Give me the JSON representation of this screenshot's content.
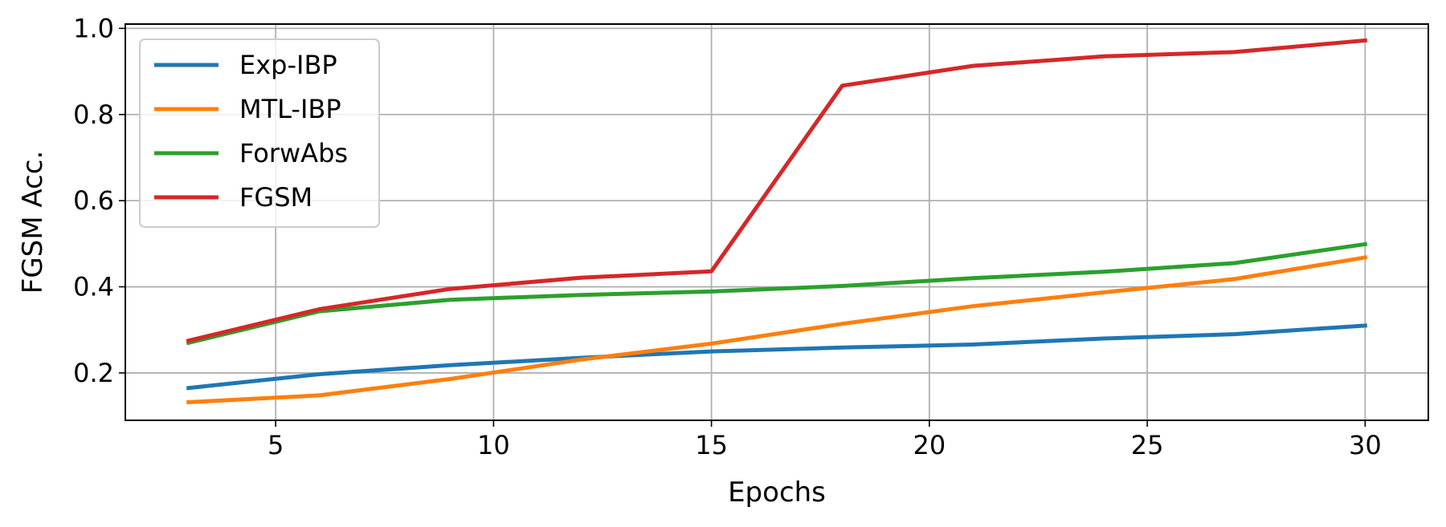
{
  "chart_data": {
    "type": "line",
    "title": "",
    "xlabel": "Epochs",
    "ylabel": "FGSM Acc.",
    "xlim": [
      1.55,
      31.45
    ],
    "ylim": [
      0.09,
      1.01
    ],
    "xticks": [
      5,
      10,
      15,
      20,
      25,
      30
    ],
    "yticks": [
      0.2,
      0.4,
      0.6,
      0.8,
      1.0
    ],
    "xtick_labels": [
      "5",
      "10",
      "15",
      "20",
      "25",
      "30"
    ],
    "ytick_labels": [
      "0.2",
      "0.4",
      "0.6",
      "0.8",
      "1.0"
    ],
    "grid": true,
    "legend_position": "top-left",
    "x": [
      3,
      6,
      9,
      12,
      15,
      18,
      21,
      24,
      27,
      30
    ],
    "series": [
      {
        "name": "Exp-IBP",
        "color": "#1f77b4",
        "values": [
          0.165,
          0.197,
          0.218,
          0.235,
          0.25,
          0.259,
          0.266,
          0.28,
          0.29,
          0.31
        ]
      },
      {
        "name": "MTL-IBP",
        "color": "#ff7f0e",
        "values": [
          0.132,
          0.148,
          0.186,
          0.231,
          0.268,
          0.314,
          0.355,
          0.387,
          0.418,
          0.468
        ]
      },
      {
        "name": "ForwAbs",
        "color": "#2ca02c",
        "values": [
          0.27,
          0.343,
          0.37,
          0.381,
          0.389,
          0.402,
          0.42,
          0.435,
          0.455,
          0.499
        ]
      },
      {
        "name": "FGSM",
        "color": "#d62728",
        "values": [
          0.275,
          0.348,
          0.395,
          0.421,
          0.436,
          0.867,
          0.913,
          0.935,
          0.945,
          0.972
        ]
      }
    ]
  }
}
